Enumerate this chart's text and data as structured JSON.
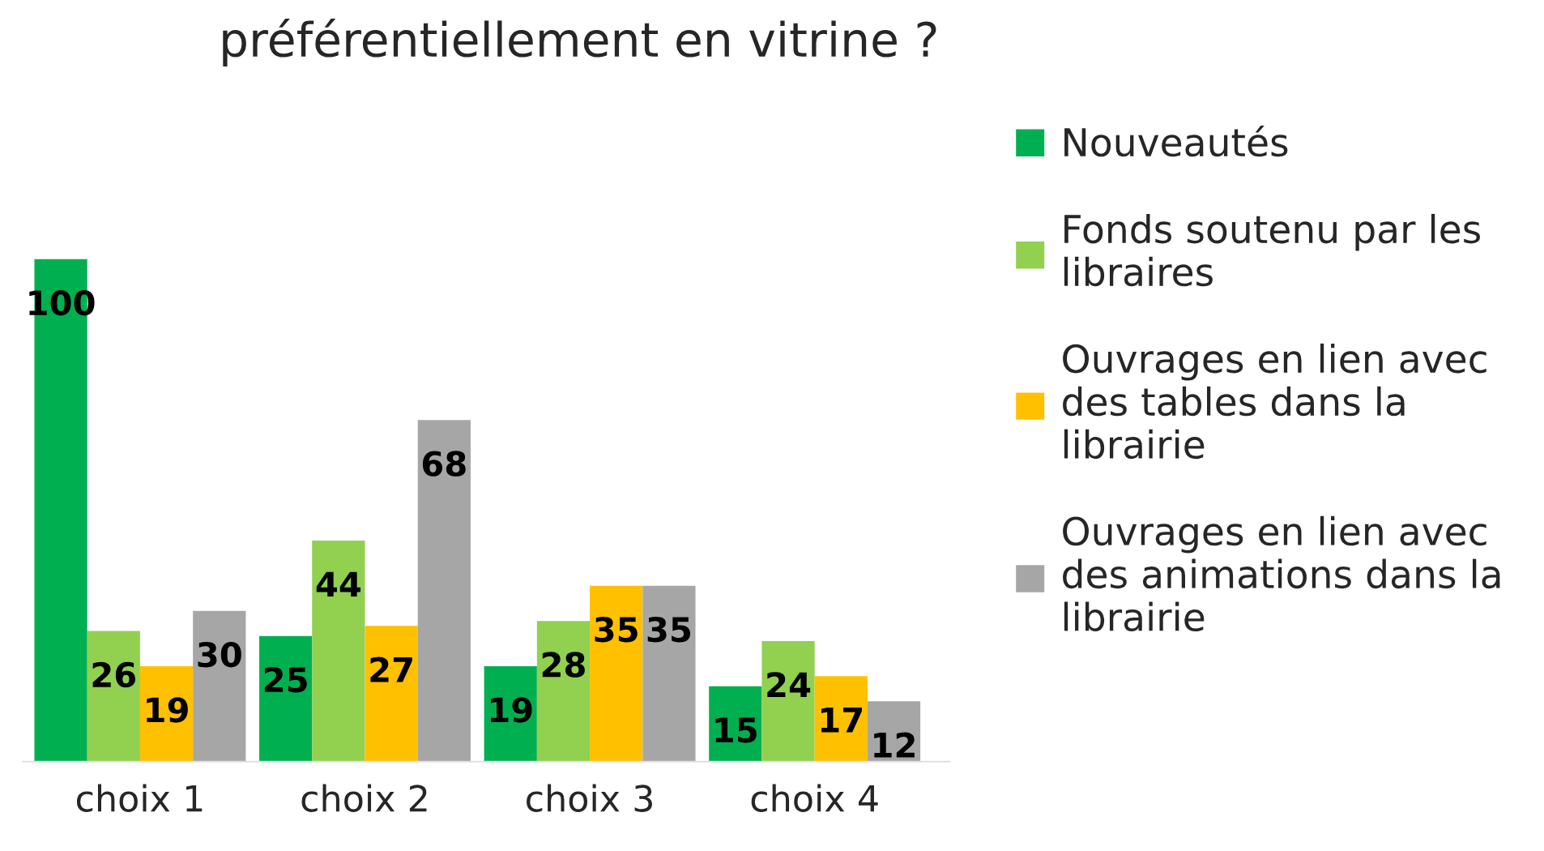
{
  "chart_data": {
    "type": "bar",
    "title": "préférentiellement en vitrine ?",
    "categories": [
      "choix 1",
      "choix 2",
      "choix 3",
      "choix 4"
    ],
    "series": [
      {
        "name": "Nouveautés",
        "color": "#00b050",
        "values": [
          100,
          25,
          19,
          15
        ]
      },
      {
        "name": "Fonds soutenu par les libraires",
        "color": "#92d050",
        "values": [
          26,
          44,
          28,
          24
        ]
      },
      {
        "name": "Ouvrages en lien avec des tables dans la librairie",
        "color": "#ffc000",
        "values": [
          19,
          27,
          35,
          17
        ]
      },
      {
        "name": "Ouvrages en lien avec des animations dans la librairie",
        "color": "#a6a6a6",
        "values": [
          30,
          68,
          35,
          12
        ]
      }
    ],
    "data_labels": true,
    "legend": "right",
    "tick_labels": "x",
    "grid": false
  }
}
